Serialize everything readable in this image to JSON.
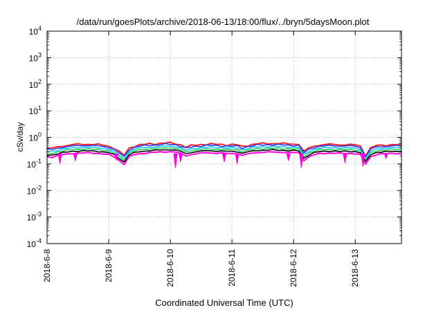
{
  "chart_data": {
    "type": "line",
    "title": "/data/run/goesPlots/archive/2018-06-13/18:00/flux/../bryn/5daysMoon.plot",
    "xlabel": "Coordinated Universal Time (UTC)",
    "ylabel": "cSv/day",
    "yscale": "log",
    "ylim": [
      0.0001,
      10000
    ],
    "xlim": [
      "2018-06-08",
      "2018-06-13T18:00"
    ],
    "grid": true,
    "x_ticks": [
      "2018-6-8",
      "2018-6-9",
      "2018-6-10",
      "2018-6-11",
      "2018-6-12",
      "2018-6-13"
    ],
    "y_ticks": [
      {
        "base": "10",
        "exp": "-4",
        "value": 0.0001
      },
      {
        "base": "10",
        "exp": "-3",
        "value": 0.001
      },
      {
        "base": "10",
        "exp": "-2",
        "value": 0.01
      },
      {
        "base": "10",
        "exp": "-1",
        "value": 0.1
      },
      {
        "base": "10",
        "exp": "0",
        "value": 1
      },
      {
        "base": "10",
        "exp": "1",
        "value": 10
      },
      {
        "base": "10",
        "exp": "2",
        "value": 100
      },
      {
        "base": "10",
        "exp": "3",
        "value": 1000
      },
      {
        "base": "10",
        "exp": "4",
        "value": 10000
      }
    ],
    "baseline": {
      "x": [
        "2018-06-08T00:00",
        "2018-06-08T02:00",
        "2018-06-08T04:00",
        "2018-06-08T06:00",
        "2018-06-08T08:00",
        "2018-06-08T10:00",
        "2018-06-08T12:00",
        "2018-06-08T14:00",
        "2018-06-08T16:00",
        "2018-06-08T18:00",
        "2018-06-08T20:00",
        "2018-06-08T22:00",
        "2018-06-09T00:00",
        "2018-06-09T02:00",
        "2018-06-09T04:00",
        "2018-06-09T06:00",
        "2018-06-09T08:00",
        "2018-06-09T10:00",
        "2018-06-09T12:00",
        "2018-06-09T14:00",
        "2018-06-09T16:00",
        "2018-06-09T18:00",
        "2018-06-09T20:00",
        "2018-06-09T22:00",
        "2018-06-10T00:00",
        "2018-06-10T02:00",
        "2018-06-10T04:00",
        "2018-06-10T06:00",
        "2018-06-10T08:00",
        "2018-06-10T10:00",
        "2018-06-10T12:00",
        "2018-06-10T14:00",
        "2018-06-10T16:00",
        "2018-06-10T18:00",
        "2018-06-10T20:00",
        "2018-06-10T22:00",
        "2018-06-11T00:00",
        "2018-06-11T02:00",
        "2018-06-11T04:00",
        "2018-06-11T06:00",
        "2018-06-11T08:00",
        "2018-06-11T10:00",
        "2018-06-11T12:00",
        "2018-06-11T14:00",
        "2018-06-11T16:00",
        "2018-06-11T18:00",
        "2018-06-11T20:00",
        "2018-06-11T22:00",
        "2018-06-12T00:00",
        "2018-06-12T02:00",
        "2018-06-12T04:00",
        "2018-06-12T06:00",
        "2018-06-12T08:00",
        "2018-06-12T10:00",
        "2018-06-12T12:00",
        "2018-06-12T14:00",
        "2018-06-12T16:00",
        "2018-06-12T18:00",
        "2018-06-12T20:00",
        "2018-06-12T22:00",
        "2018-06-13T00:00",
        "2018-06-13T02:00",
        "2018-06-13T04:00",
        "2018-06-13T06:00",
        "2018-06-13T08:00",
        "2018-06-13T10:00",
        "2018-06-13T12:00",
        "2018-06-13T14:00",
        "2018-06-13T16:00",
        "2018-06-13T18:00"
      ],
      "y": [
        0.3,
        0.29,
        0.33,
        0.36,
        0.38,
        0.4,
        0.41,
        0.42,
        0.42,
        0.41,
        0.4,
        0.38,
        0.36,
        0.3,
        0.22,
        0.16,
        0.3,
        0.36,
        0.39,
        0.41,
        0.43,
        0.44,
        0.45,
        0.46,
        0.46,
        0.45,
        0.4,
        0.33,
        0.36,
        0.39,
        0.41,
        0.42,
        0.42,
        0.41,
        0.41,
        0.4,
        0.4,
        0.39,
        0.34,
        0.38,
        0.41,
        0.43,
        0.44,
        0.45,
        0.45,
        0.44,
        0.44,
        0.43,
        0.43,
        0.42,
        0.22,
        0.3,
        0.36,
        0.39,
        0.4,
        0.41,
        0.41,
        0.4,
        0.4,
        0.4,
        0.39,
        0.36,
        0.16,
        0.3,
        0.36,
        0.38,
        0.39,
        0.4,
        0.4,
        0.4
      ]
    },
    "series": [
      {
        "color": "#ff1f1f",
        "factor": 1.32,
        "jitter": 0.1
      },
      {
        "color": "#1f3fff",
        "factor": 1.18,
        "jitter": 0.09
      },
      {
        "color": "#22c0ff",
        "factor": 1.0,
        "jitter": 0.07
      },
      {
        "color": "#2fcf5f",
        "factor": 0.86,
        "jitter": 0.06
      },
      {
        "color": "#000000",
        "factor": 0.74,
        "jitter": 0.05
      },
      {
        "color": "#ff00e0",
        "factor": 0.62,
        "jitter": 0.05
      }
    ],
    "dips": [
      {
        "x": "2018-06-08T05:00",
        "y": 0.1
      },
      {
        "x": "2018-06-08T11:00",
        "y": 0.13
      },
      {
        "x": "2018-06-09T03:00",
        "y": 0.14
      },
      {
        "x": "2018-06-10T02:00",
        "y": 0.07
      },
      {
        "x": "2018-06-10T04:00",
        "y": 0.12
      },
      {
        "x": "2018-06-10T21:00",
        "y": 0.12
      },
      {
        "x": "2018-06-11T02:00",
        "y": 0.1
      },
      {
        "x": "2018-06-11T22:00",
        "y": 0.13
      },
      {
        "x": "2018-06-12T03:00",
        "y": 0.07
      },
      {
        "x": "2018-06-12T20:00",
        "y": 0.11
      },
      {
        "x": "2018-06-13T03:00",
        "y": 0.08
      },
      {
        "x": "2018-06-13T12:00",
        "y": 0.16
      }
    ],
    "colors": {
      "grid": "#a0a0a0",
      "axis": "#000000",
      "background": "#ffffff"
    }
  }
}
